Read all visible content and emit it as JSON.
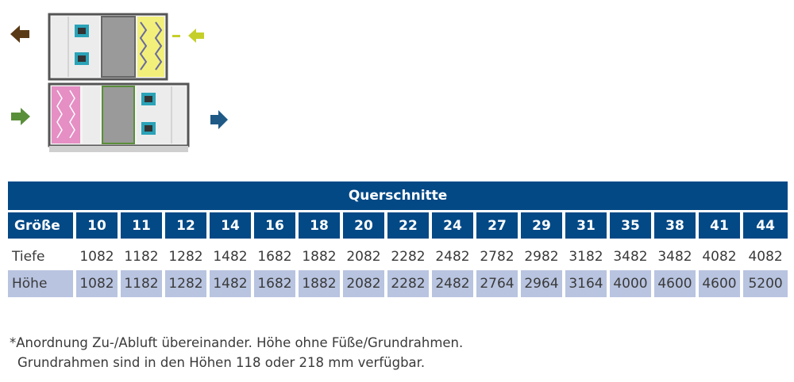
{
  "diagram": {
    "arrows": {
      "top_left": "arrow-left-icon",
      "top_right": "arrow-left-icon",
      "bottom_left": "arrow-right-icon",
      "bottom_right": "arrow-right-icon"
    },
    "colors": {
      "arrow_brown": "#5a3a16",
      "arrow_lime": "#c5cf2a",
      "arrow_green": "#5a8f3a",
      "arrow_blue": "#1f5a86",
      "filter_yellow": "#f2f07a",
      "filter_pink": "#e58fc4",
      "fan_teal": "#2aa3b8"
    }
  },
  "table": {
    "title": "Querschnitte",
    "header_label": "Größe",
    "sizes": [
      "10",
      "11",
      "12",
      "14",
      "16",
      "18",
      "20",
      "22",
      "24",
      "27",
      "29",
      "31",
      "35",
      "38",
      "41",
      "44"
    ],
    "rows": [
      {
        "label": "Tiefe",
        "values": [
          "1082",
          "1182",
          "1282",
          "1482",
          "1682",
          "1882",
          "2082",
          "2282",
          "2482",
          "2782",
          "2982",
          "3182",
          "3482",
          "3482",
          "4082",
          "4082"
        ]
      },
      {
        "label": "Höhe",
        "values": [
          "1082",
          "1182",
          "1282",
          "1482",
          "1682",
          "1882",
          "2082",
          "2282",
          "2482",
          "2764",
          "2964",
          "3164",
          "4000",
          "4600",
          "4600",
          "5200"
        ]
      }
    ],
    "colors": {
      "header_blue": "#034986",
      "row_shade": "#b8c4e0"
    }
  },
  "footnote": {
    "line1": "*Anordnung Zu-/Abluft übereinander. Höhe ohne Füße/Grundrahmen.",
    "line2": "Grundrahmen sind in den Höhen 118 oder 218 mm verfügbar."
  }
}
